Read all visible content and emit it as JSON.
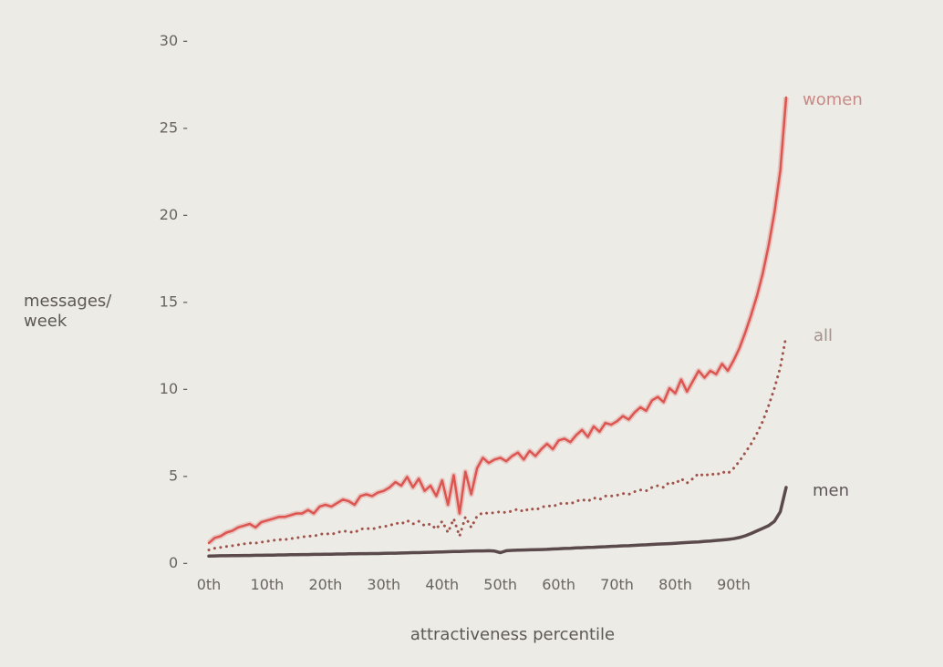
{
  "chart_data": {
    "type": "line",
    "title": "",
    "xlabel": "attractiveness percentile",
    "ylabel": [
      "messages/",
      "week"
    ],
    "xlim": [
      0,
      99
    ],
    "ylim": [
      0,
      30
    ],
    "x_ticks": [
      {
        "value": 0,
        "label": "0th"
      },
      {
        "value": 10,
        "label": "10th"
      },
      {
        "value": 20,
        "label": "20th"
      },
      {
        "value": 30,
        "label": "30th"
      },
      {
        "value": 40,
        "label": "40th"
      },
      {
        "value": 50,
        "label": "50th"
      },
      {
        "value": 60,
        "label": "60th"
      },
      {
        "value": 70,
        "label": "70th"
      },
      {
        "value": 80,
        "label": "80th"
      },
      {
        "value": 90,
        "label": "90th"
      }
    ],
    "y_ticks": [
      {
        "value": 0,
        "label": "0 -"
      },
      {
        "value": 5,
        "label": "5 -"
      },
      {
        "value": 10,
        "label": "10 -"
      },
      {
        "value": 15,
        "label": "15 -"
      },
      {
        "value": 20,
        "label": "20 -"
      },
      {
        "value": 25,
        "label": "25 -"
      },
      {
        "value": 30,
        "label": "30 -"
      }
    ],
    "grid": false,
    "legend": "labels at line ends (right)",
    "x": [
      0,
      1,
      2,
      3,
      4,
      5,
      6,
      7,
      8,
      9,
      10,
      11,
      12,
      13,
      14,
      15,
      16,
      17,
      18,
      19,
      20,
      21,
      22,
      23,
      24,
      25,
      26,
      27,
      28,
      29,
      30,
      31,
      32,
      33,
      34,
      35,
      36,
      37,
      38,
      39,
      40,
      41,
      42,
      43,
      44,
      45,
      46,
      47,
      48,
      49,
      50,
      51,
      52,
      53,
      54,
      55,
      56,
      57,
      58,
      59,
      60,
      61,
      62,
      63,
      64,
      65,
      66,
      67,
      68,
      69,
      70,
      71,
      72,
      73,
      74,
      75,
      76,
      77,
      78,
      79,
      80,
      81,
      82,
      83,
      84,
      85,
      86,
      87,
      88,
      89,
      90,
      91,
      92,
      93,
      94,
      95,
      96,
      97,
      98,
      99
    ],
    "series": [
      {
        "name": "women",
        "color": "#dc5550",
        "style": "solid",
        "values": [
          1.1,
          1.4,
          1.5,
          1.7,
          1.8,
          2.0,
          2.1,
          2.2,
          2.0,
          2.3,
          2.4,
          2.5,
          2.6,
          2.6,
          2.7,
          2.8,
          2.8,
          3.0,
          2.8,
          3.2,
          3.3,
          3.2,
          3.4,
          3.6,
          3.5,
          3.3,
          3.8,
          3.9,
          3.8,
          4.0,
          4.1,
          4.3,
          4.6,
          4.4,
          4.9,
          4.3,
          4.8,
          4.1,
          4.4,
          3.8,
          4.7,
          3.3,
          5.0,
          2.8,
          5.2,
          3.9,
          5.4,
          6.0,
          5.7,
          5.9,
          6.0,
          5.8,
          6.1,
          6.3,
          5.9,
          6.4,
          6.1,
          6.5,
          6.8,
          6.5,
          7.0,
          7.1,
          6.9,
          7.3,
          7.6,
          7.2,
          7.8,
          7.5,
          8.0,
          7.9,
          8.1,
          8.4,
          8.2,
          8.6,
          8.9,
          8.7,
          9.3,
          9.5,
          9.2,
          10.0,
          9.7,
          10.5,
          9.8,
          10.4,
          11.0,
          10.6,
          11.0,
          10.8,
          11.4,
          11.0,
          11.6,
          12.3,
          13.2,
          14.2,
          15.3,
          16.6,
          18.2,
          20.1,
          22.5,
          26.7
        ]
      },
      {
        "name": "all",
        "color": "#a0534a",
        "style": "dotted",
        "values": [
          0.7,
          0.8,
          0.85,
          0.9,
          0.95,
          1.0,
          1.05,
          1.1,
          1.1,
          1.15,
          1.2,
          1.25,
          1.3,
          1.3,
          1.35,
          1.4,
          1.45,
          1.5,
          1.5,
          1.6,
          1.65,
          1.6,
          1.7,
          1.8,
          1.75,
          1.7,
          1.9,
          1.95,
          1.9,
          2.0,
          2.05,
          2.1,
          2.25,
          2.2,
          2.4,
          2.2,
          2.35,
          2.1,
          2.2,
          1.9,
          2.35,
          1.7,
          2.5,
          1.5,
          2.6,
          2.0,
          2.65,
          2.85,
          2.8,
          2.85,
          2.9,
          2.85,
          2.95,
          3.05,
          2.9,
          3.1,
          3.0,
          3.15,
          3.25,
          3.2,
          3.35,
          3.4,
          3.35,
          3.5,
          3.6,
          3.5,
          3.7,
          3.6,
          3.8,
          3.8,
          3.85,
          3.95,
          3.9,
          4.05,
          4.15,
          4.1,
          4.3,
          4.4,
          4.3,
          4.6,
          4.5,
          4.8,
          4.55,
          4.8,
          5.1,
          4.95,
          5.1,
          5.0,
          5.2,
          5.1,
          5.4,
          5.8,
          6.3,
          6.8,
          7.4,
          8.1,
          9.0,
          10.0,
          11.2,
          13.0
        ]
      },
      {
        "name": "men",
        "color": "#5b4a4c",
        "style": "solid",
        "values": [
          0.35,
          0.36,
          0.37,
          0.37,
          0.38,
          0.38,
          0.39,
          0.39,
          0.4,
          0.4,
          0.41,
          0.41,
          0.42,
          0.42,
          0.43,
          0.43,
          0.44,
          0.44,
          0.45,
          0.45,
          0.46,
          0.46,
          0.47,
          0.47,
          0.48,
          0.48,
          0.49,
          0.49,
          0.5,
          0.5,
          0.51,
          0.52,
          0.52,
          0.53,
          0.54,
          0.55,
          0.55,
          0.56,
          0.57,
          0.58,
          0.59,
          0.6,
          0.61,
          0.62,
          0.63,
          0.64,
          0.65,
          0.65,
          0.66,
          0.64,
          0.55,
          0.66,
          0.68,
          0.69,
          0.7,
          0.71,
          0.72,
          0.73,
          0.74,
          0.76,
          0.77,
          0.79,
          0.8,
          0.82,
          0.83,
          0.85,
          0.86,
          0.88,
          0.89,
          0.91,
          0.92,
          0.94,
          0.95,
          0.97,
          0.99,
          1.0,
          1.02,
          1.04,
          1.05,
          1.07,
          1.09,
          1.11,
          1.13,
          1.15,
          1.17,
          1.2,
          1.22,
          1.25,
          1.28,
          1.31,
          1.35,
          1.42,
          1.52,
          1.65,
          1.8,
          1.95,
          2.1,
          2.35,
          2.9,
          4.3
        ]
      }
    ],
    "series_labels": [
      "women",
      "all",
      "men"
    ]
  }
}
